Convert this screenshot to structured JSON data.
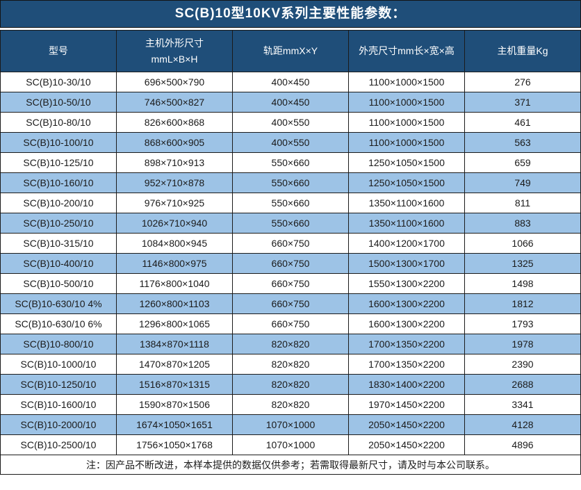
{
  "title": "SC(B)10型10KV系列主要性能参数：",
  "colors": {
    "header_bg": "#1F4E79",
    "row_stripe_bg": "#9DC3E6",
    "row_plain_bg": "#FFFFFF",
    "grid_border": "#1A1A1A",
    "header_text": "#FFFFFF",
    "body_text": "#1A1A1A"
  },
  "table": {
    "columns": [
      "型号",
      "主机外形尺寸\nmmL×B×H",
      "轨距mmX×Y",
      "外壳尺寸mm长×宽×高",
      "主机重量Kg"
    ],
    "rows": [
      [
        "SC(B)10-30/10",
        "696×500×790",
        "400×450",
        "1100×1000×1500",
        "276"
      ],
      [
        "SC(B)10-50/10",
        "746×500×827",
        "400×450",
        "1100×1000×1500",
        "371"
      ],
      [
        "SC(B)10-80/10",
        "826×600×868",
        "400×550",
        "1100×1000×1500",
        "461"
      ],
      [
        "SC(B)10-100/10",
        "868×600×905",
        "400×550",
        "1100×1000×1500",
        "563"
      ],
      [
        "SC(B)10-125/10",
        "898×710×913",
        "550×660",
        "1250×1050×1500",
        "659"
      ],
      [
        "SC(B)10-160/10",
        "952×710×878",
        "550×660",
        "1250×1050×1500",
        "749"
      ],
      [
        "SC(B)10-200/10",
        "976×710×925",
        "550×660",
        "1350×1100×1600",
        "811"
      ],
      [
        "SC(B)10-250/10",
        "1026×710×940",
        "550×660",
        "1350×1100×1600",
        "883"
      ],
      [
        "SC(B)10-315/10",
        "1084×800×945",
        "660×750",
        "1400×1200×1700",
        "1066"
      ],
      [
        "SC(B)10-400/10",
        "1146×800×975",
        "660×750",
        "1500×1300×1700",
        "1325"
      ],
      [
        "SC(B)10-500/10",
        "1176×800×1040",
        "660×750",
        "1550×1300×2200",
        "1498"
      ],
      [
        "SC(B)10-630/10 4%",
        "1260×800×1103",
        "660×750",
        "1600×1300×2200",
        "1812"
      ],
      [
        "SC(B)10-630/10 6%",
        "1296×800×1065",
        "660×750",
        "1600×1300×2200",
        "1793"
      ],
      [
        "SC(B)10-800/10",
        "1384×870×1118",
        "820×820",
        "1700×1350×2200",
        "1978"
      ],
      [
        "SC(B)10-1000/10",
        "1470×870×1205",
        "820×820",
        "1700×1350×2200",
        "2390"
      ],
      [
        "SC(B)10-1250/10",
        "1516×870×1315",
        "820×820",
        "1830×1400×2200",
        "2688"
      ],
      [
        "SC(B)10-1600/10",
        "1590×870×1506",
        "820×820",
        "1970×1450×2200",
        "3341"
      ],
      [
        "SC(B)10-2000/10",
        "1674×1050×1651",
        "1070×1000",
        "2050×1450×2200",
        "4128"
      ],
      [
        "SC(B)10-2500/10",
        "1756×1050×1768",
        "1070×1000",
        "2050×1450×2200",
        "4896"
      ]
    ]
  },
  "footnote": "注：因产品不断改进，本样本提供的数据仅供参考；若需取得最新尺寸，请及时与本公司联系。"
}
